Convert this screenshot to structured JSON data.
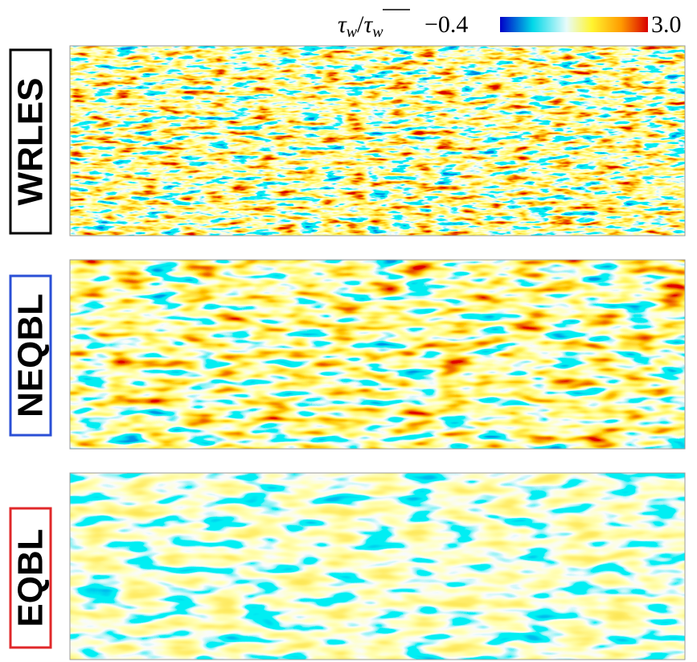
{
  "colorbar": {
    "label_parts": [
      "τ",
      "w",
      "/",
      "τ",
      "w"
    ],
    "min_label": "−0.4",
    "max_label": "3.0"
  },
  "panels": [
    {
      "label": "WRLES",
      "border": "#000000"
    },
    {
      "label": "NEQBL",
      "border": "#2a4fd6"
    },
    {
      "label": "EQBL",
      "border": "#e0282a"
    }
  ]
}
